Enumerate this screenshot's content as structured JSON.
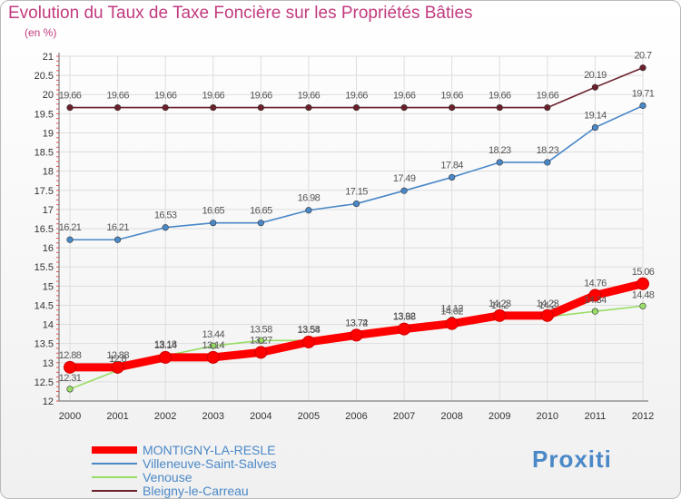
{
  "chart_data": {
    "type": "line",
    "title": "Evolution du Taux de Taxe Foncière sur les Propriétés Bâties",
    "ylabel": "(en %)",
    "xlabel": "",
    "categories": [
      "2000",
      "2001",
      "2002",
      "2003",
      "2004",
      "2005",
      "2006",
      "2007",
      "2008",
      "2009",
      "2010",
      "2011",
      "2012"
    ],
    "ylim": [
      12,
      21
    ],
    "yticks": [
      "12",
      "12.5",
      "13",
      "13.5",
      "14",
      "14.5",
      "15",
      "15.5",
      "16",
      "16.5",
      "17",
      "17.5",
      "18",
      "18.5",
      "19",
      "19.5",
      "20",
      "20.5",
      "21"
    ],
    "series": [
      {
        "name": "Bleigny-le-Carreau",
        "color": "#6b1f2a",
        "values": [
          19.66,
          19.66,
          19.66,
          19.66,
          19.66,
          19.66,
          19.66,
          19.66,
          19.66,
          19.66,
          19.66,
          20.19,
          20.7
        ],
        "labels": [
          "19.66",
          "19.66",
          "19.66",
          "19.66",
          "19.66",
          "19.66",
          "19.66",
          "19.66",
          "19.66",
          "19.66",
          "19.66",
          "20.19",
          "20.7"
        ]
      },
      {
        "name": "Villeneuve-Saint-Salves",
        "color": "#4a88c7",
        "values": [
          16.21,
          16.21,
          16.53,
          16.65,
          16.65,
          16.98,
          17.15,
          17.49,
          17.84,
          18.23,
          18.23,
          19.14,
          19.71
        ],
        "labels": [
          "16.21",
          "16.21",
          "16.53",
          "16.65",
          "16.65",
          "16.98",
          "17.15",
          "17.49",
          "17.84",
          "18.23",
          "18.23",
          "19.14",
          "19.71"
        ]
      },
      {
        "name": "Venouse",
        "color": "#99dd66",
        "values": [
          12.31,
          12.8,
          13.18,
          13.44,
          13.58,
          13.58,
          13.74,
          13.92,
          14.12,
          14.2,
          14.2,
          14.34,
          14.48
        ],
        "labels": [
          "12.31",
          "12.8",
          "13.18",
          "13.44",
          "13.58",
          "13.58",
          "13.74",
          "13.92",
          "14.12",
          "14.2",
          "14.2",
          "14.34",
          "14.48"
        ]
      },
      {
        "name": "MONTIGNY-LA-RESLE",
        "color": "#ff0000",
        "values": [
          12.88,
          12.88,
          13.14,
          13.14,
          13.27,
          13.54,
          13.72,
          13.88,
          14.02,
          14.23,
          14.23,
          14.76,
          15.06
        ],
        "labels": [
          "12.88",
          "12.88",
          "13.14",
          "13.14",
          "13.27",
          "13.54",
          "13.72",
          "13.88",
          "14.02",
          "14.23",
          "14.23",
          "14.76",
          "15.06"
        ]
      }
    ],
    "legend": [
      "MONTIGNY-LA-RESLE",
      "Villeneuve-Saint-Salves",
      "Venouse",
      "Bleigny-le-Carreau"
    ],
    "legend_position": "bottom-left"
  },
  "brand": {
    "logo_text": "Proxiti"
  }
}
